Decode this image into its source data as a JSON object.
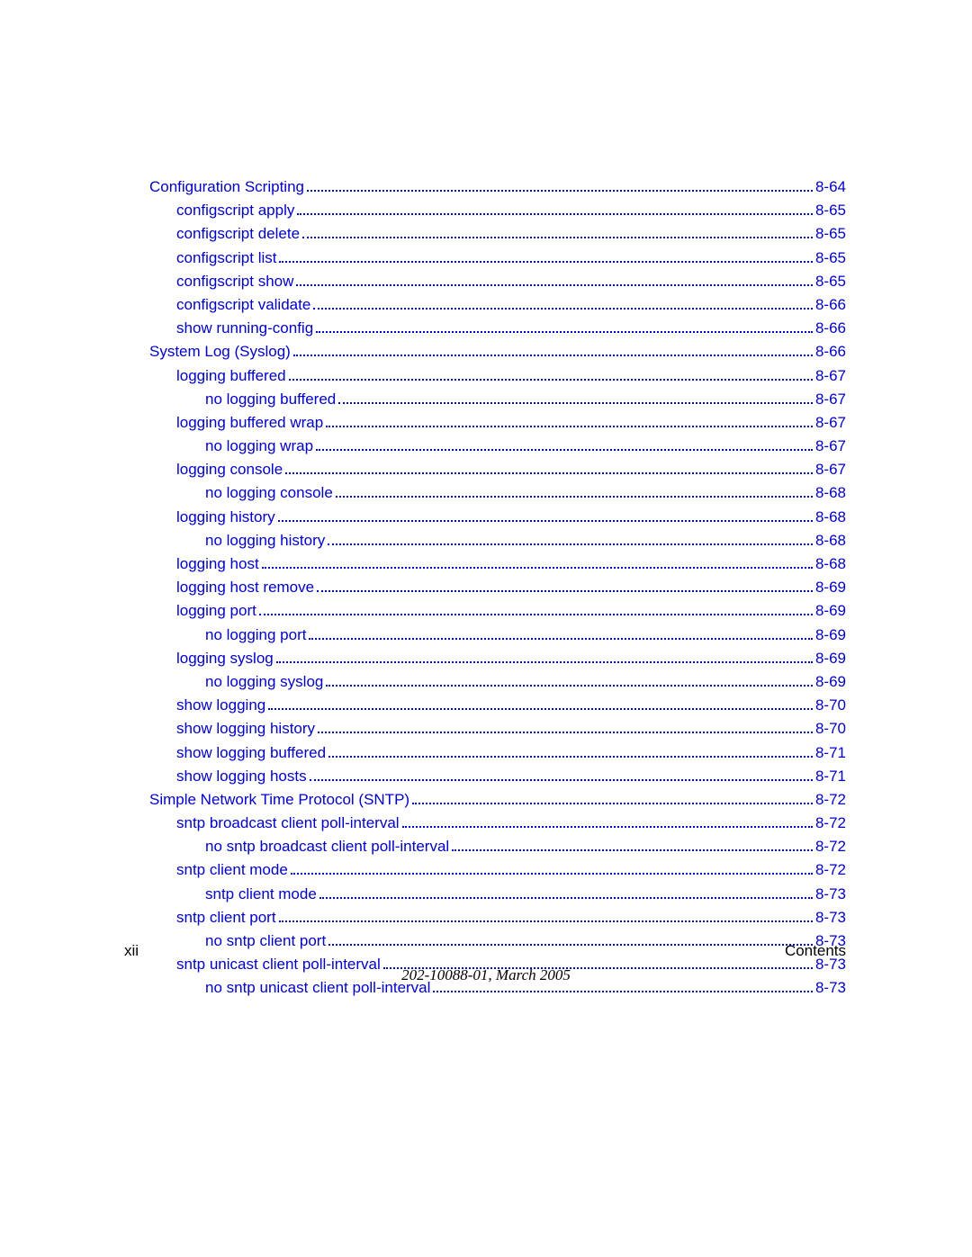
{
  "toc": [
    {
      "label": "Configuration Scripting",
      "page": "8-64",
      "indent": 0
    },
    {
      "label": "configscript apply",
      "page": "8-65",
      "indent": 1
    },
    {
      "label": "configscript delete",
      "page": "8-65",
      "indent": 1
    },
    {
      "label": "configscript list",
      "page": "8-65",
      "indent": 1
    },
    {
      "label": "configscript show",
      "page": "8-65",
      "indent": 1
    },
    {
      "label": "configscript validate",
      "page": "8-66",
      "indent": 1
    },
    {
      "label": "show running-config",
      "page": "8-66",
      "indent": 1
    },
    {
      "label": "System Log (Syslog)",
      "page": "8-66",
      "indent": 0
    },
    {
      "label": "logging buffered",
      "page": "8-67",
      "indent": 1
    },
    {
      "label": "no logging buffered",
      "page": "8-67",
      "indent": 2
    },
    {
      "label": "logging buffered wrap",
      "page": "8-67",
      "indent": 1
    },
    {
      "label": "no logging wrap",
      "page": "8-67",
      "indent": 2
    },
    {
      "label": "logging console",
      "page": "8-67",
      "indent": 1
    },
    {
      "label": "no logging console",
      "page": "8-68",
      "indent": 2
    },
    {
      "label": "logging history",
      "page": "8-68",
      "indent": 1
    },
    {
      "label": "no logging history",
      "page": "8-68",
      "indent": 2
    },
    {
      "label": "logging host",
      "page": "8-68",
      "indent": 1
    },
    {
      "label": "logging host remove",
      "page": "8-69",
      "indent": 1
    },
    {
      "label": "logging port",
      "page": "8-69",
      "indent": 1
    },
    {
      "label": "no logging port",
      "page": "8-69",
      "indent": 2
    },
    {
      "label": "logging syslog",
      "page": "8-69",
      "indent": 1
    },
    {
      "label": "no logging syslog",
      "page": "8-69",
      "indent": 2
    },
    {
      "label": "show logging",
      "page": "8-70",
      "indent": 1
    },
    {
      "label": "show logging history",
      "page": "8-70",
      "indent": 1
    },
    {
      "label": "show logging buffered",
      "page": "8-71",
      "indent": 1
    },
    {
      "label": "show logging hosts",
      "page": "8-71",
      "indent": 1
    },
    {
      "label": "Simple Network Time Protocol (SNTP)",
      "page": "8-72",
      "indent": 0
    },
    {
      "label": "sntp broadcast client poll-interval",
      "page": "8-72",
      "indent": 1
    },
    {
      "label": "no sntp broadcast client poll-interval",
      "page": "8-72",
      "indent": 2
    },
    {
      "label": "sntp client mode",
      "page": "8-72",
      "indent": 1
    },
    {
      "label": "sntp client mode",
      "page": "8-73",
      "indent": 2
    },
    {
      "label": "sntp client port",
      "page": "8-73",
      "indent": 1
    },
    {
      "label": "no sntp client port",
      "page": "8-73",
      "indent": 2
    },
    {
      "label": "sntp unicast client poll-interval",
      "page": "8-73",
      "indent": 1
    },
    {
      "label": "no sntp unicast client poll-interval",
      "page": "8-73",
      "indent": 2
    }
  ],
  "footer": {
    "left": "xii",
    "right": "Contents",
    "sub": "202-10088-01, March 2005"
  },
  "style": {
    "link_color": "#0000cc",
    "text_color": "#000000",
    "background": "#ffffff",
    "fontsize": 17,
    "line_spacing": 6.2
  }
}
